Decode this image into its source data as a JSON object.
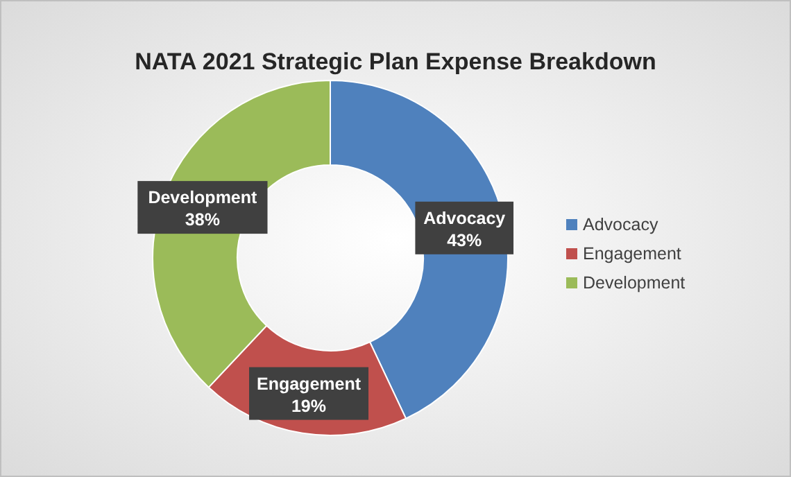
{
  "chart_data": {
    "type": "donut",
    "title": "NATA 2021 Strategic Plan Expense Breakdown",
    "categories": [
      "Advocacy",
      "Engagement",
      "Development"
    ],
    "values": [
      43,
      19,
      38
    ],
    "colors": [
      "#4f81bd",
      "#c0504d",
      "#9bbb59"
    ],
    "value_labels": [
      "43%",
      "19%",
      "38%"
    ],
    "legend": "right"
  }
}
